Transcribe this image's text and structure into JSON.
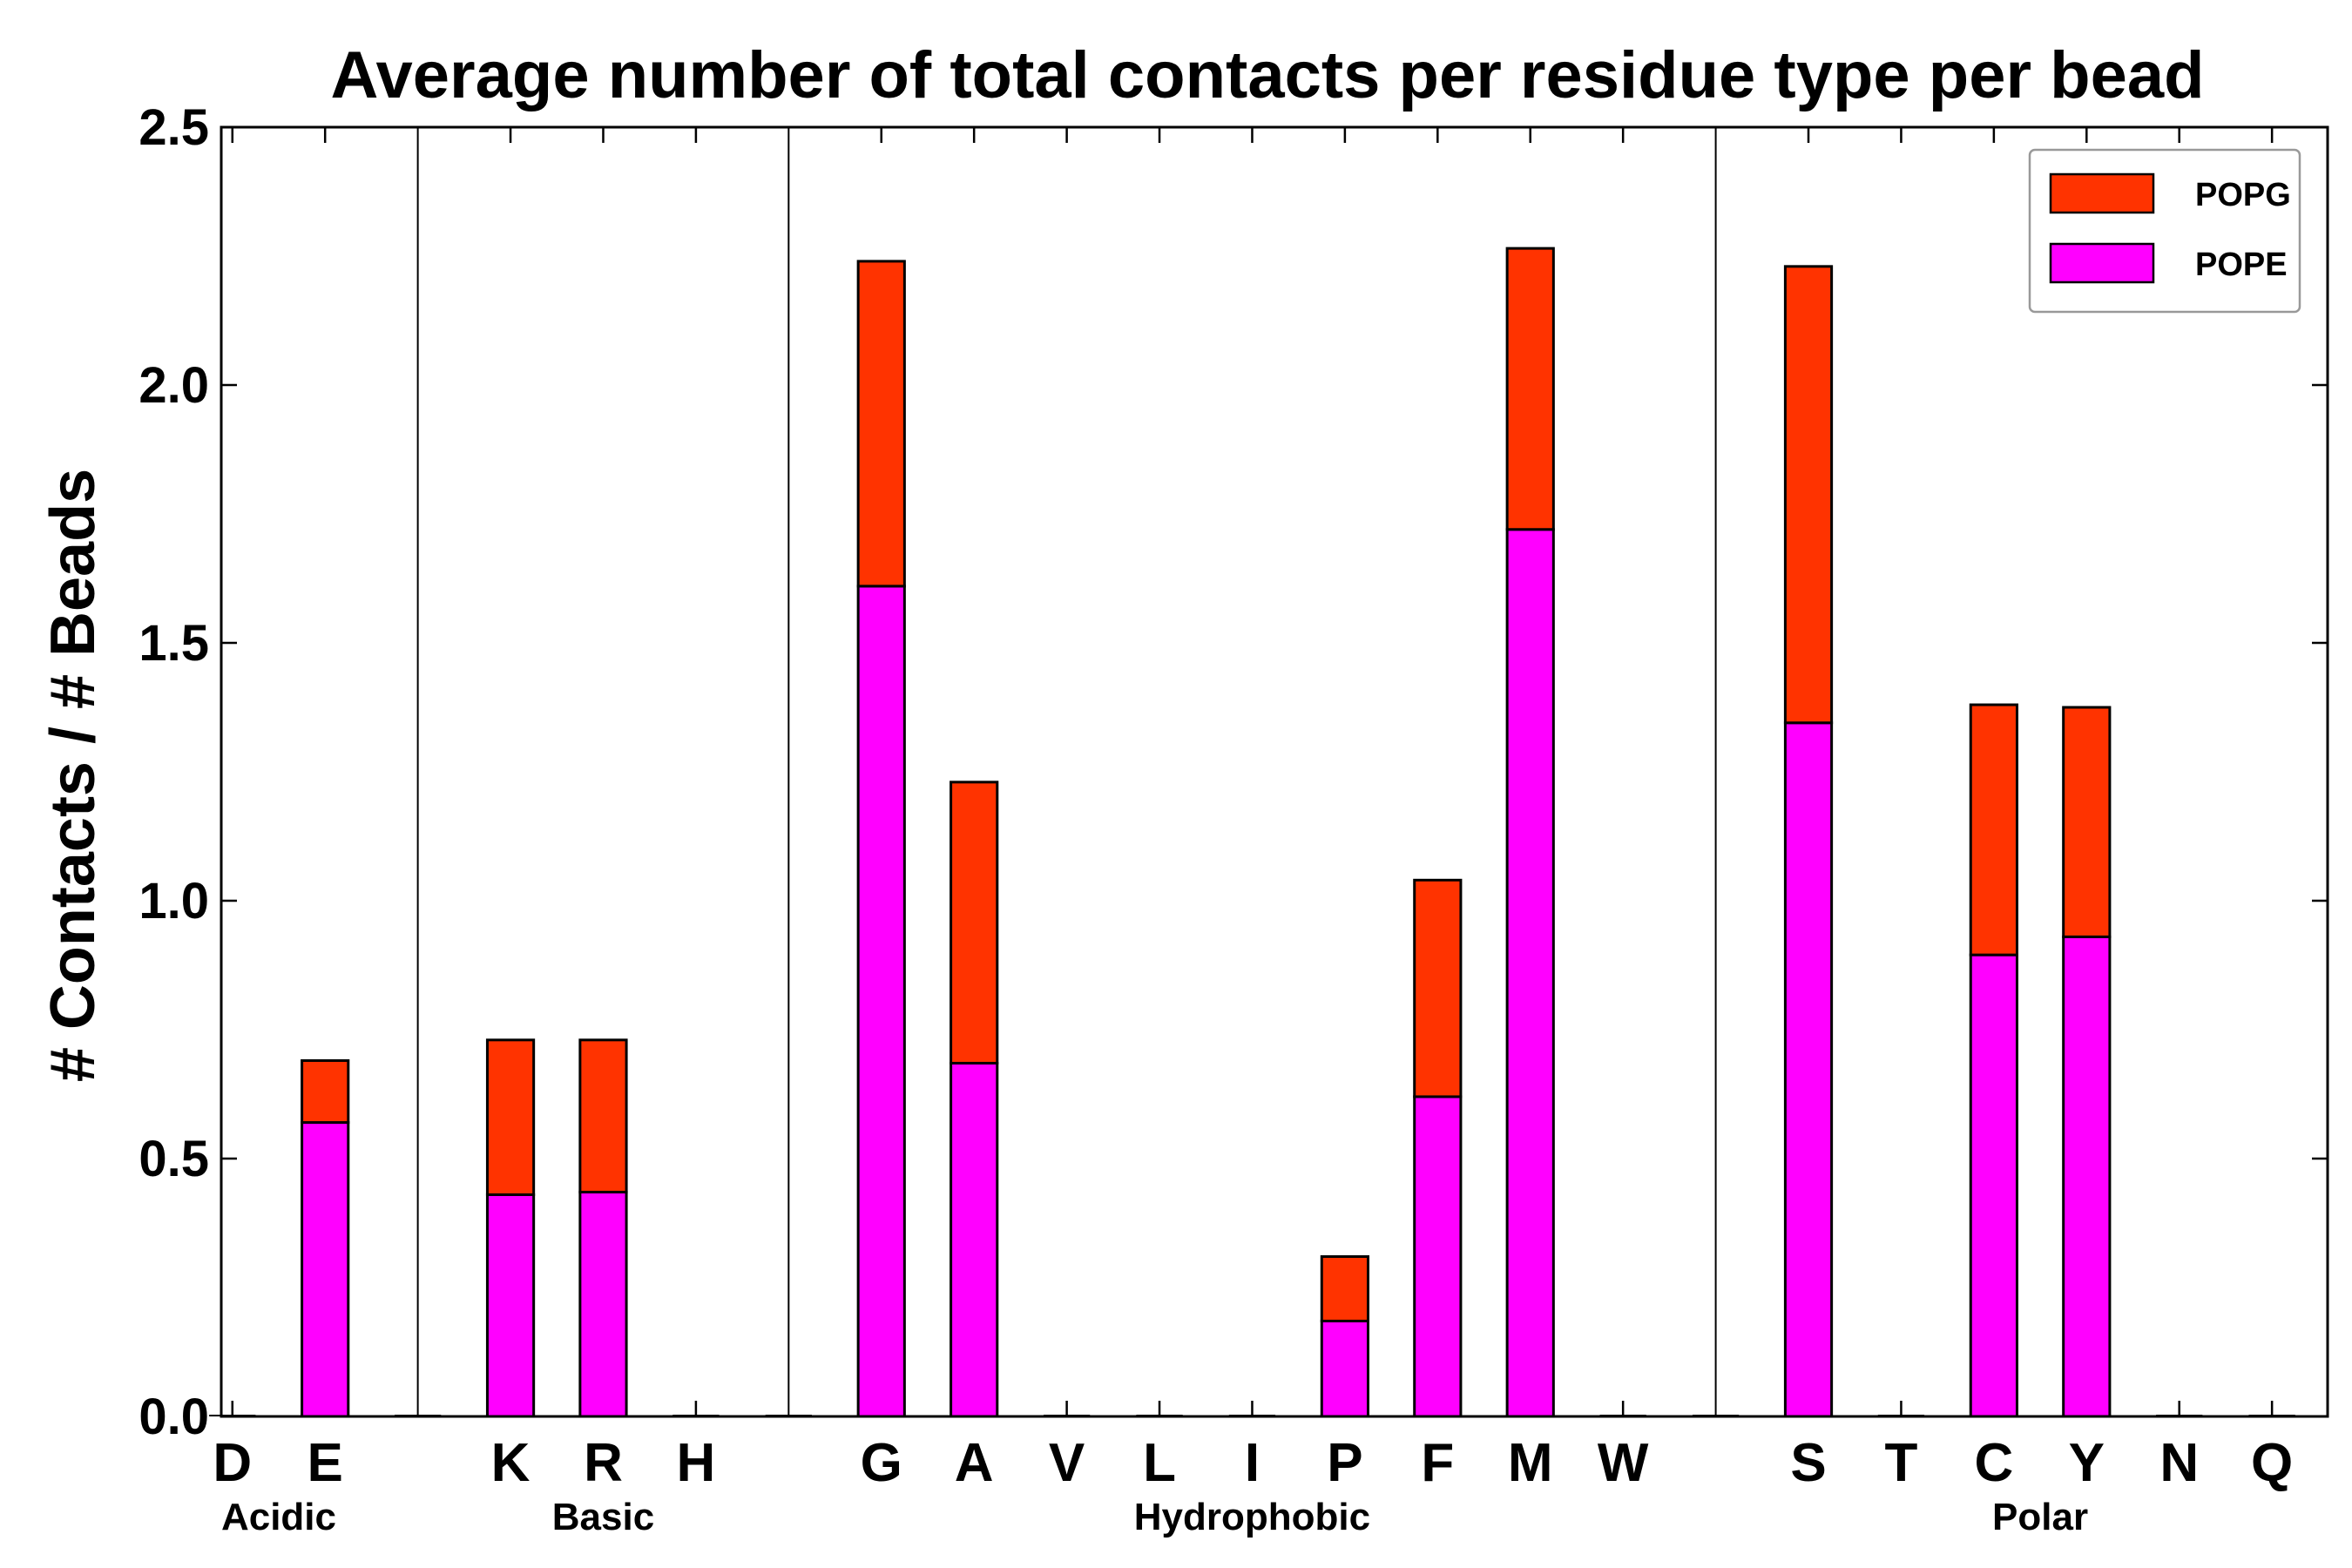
{
  "chart_data": {
    "type": "bar",
    "stacked": true,
    "title": "Average number of total contacts per residue type per bead",
    "xlabel": "",
    "ylabel": "# Contacts / # Beads",
    "ylim": [
      0.0,
      2.5
    ],
    "yticks": [
      "0.0",
      "0.5",
      "1.0",
      "1.5",
      "2.0",
      "2.5"
    ],
    "categories": [
      "D",
      "E",
      "K",
      "R",
      "H",
      "G",
      "A",
      "V",
      "L",
      "I",
      "P",
      "F",
      "M",
      "W",
      "S",
      "T",
      "C",
      "Y",
      "N",
      "Q"
    ],
    "groups": [
      {
        "name": "Acidic",
        "members": [
          "D",
          "E"
        ]
      },
      {
        "name": "Basic",
        "members": [
          "K",
          "R",
          "H"
        ]
      },
      {
        "name": "Hydrophobic",
        "members": [
          "G",
          "A",
          "V",
          "L",
          "I",
          "P",
          "F",
          "M",
          "W"
        ]
      },
      {
        "name": "Polar",
        "members": [
          "S",
          "T",
          "C",
          "Y",
          "N",
          "Q"
        ]
      }
    ],
    "series": [
      {
        "name": "POPE",
        "color": "#ff00ff",
        "values": [
          0.0,
          0.57,
          0.43,
          0.435,
          0.0,
          1.61,
          0.685,
          0.0,
          0.0,
          0.0,
          0.185,
          0.62,
          1.72,
          0.0,
          1.345,
          0.0,
          0.895,
          0.93,
          0.0,
          0.0
        ]
      },
      {
        "name": "POPG",
        "color": "#ff3300",
        "values": [
          0.0,
          0.12,
          0.3,
          0.295,
          0.0,
          0.63,
          0.545,
          0.0,
          0.0,
          0.0,
          0.125,
          0.42,
          0.545,
          0.0,
          0.885,
          0.0,
          0.485,
          0.445,
          0.0,
          0.0
        ]
      }
    ],
    "legend": {
      "position": "top-right",
      "order": [
        "POPG",
        "POPE"
      ]
    },
    "grid": false
  }
}
